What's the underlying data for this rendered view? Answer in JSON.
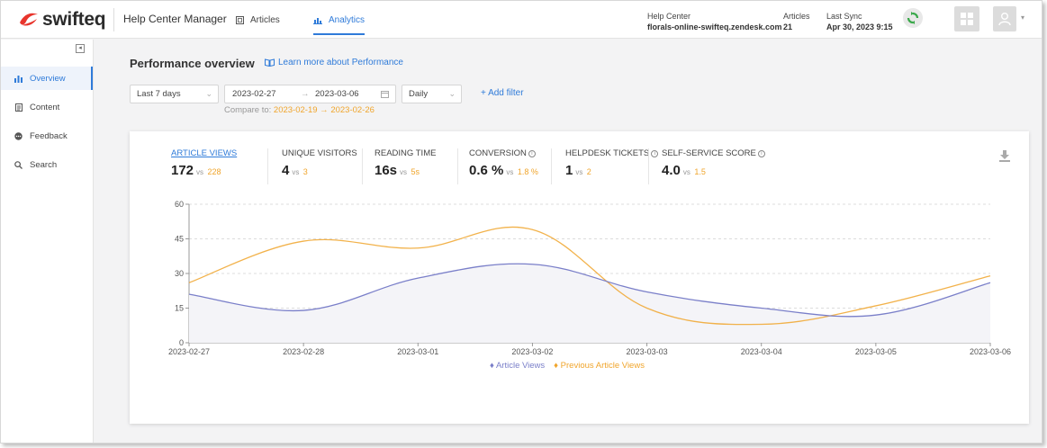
{
  "header": {
    "logo_text": "swifteq",
    "app_title": "Help Center Manager",
    "tabs": [
      {
        "label": "Articles",
        "icon": "article-icon"
      },
      {
        "label": "Analytics",
        "icon": "bar-chart-icon"
      }
    ],
    "help_center_label": "Help Center",
    "help_center_value": "florals-online-swifteq.zendesk.com",
    "articles_label": "Articles",
    "articles_value": "21",
    "last_sync_label": "Last Sync",
    "last_sync_value": "Apr 30, 2023 9:15"
  },
  "sidebar": {
    "items": [
      {
        "label": "Overview",
        "icon": "bar-chart-icon"
      },
      {
        "label": "Content",
        "icon": "document-icon"
      },
      {
        "label": "Feedback",
        "icon": "chat-icon"
      },
      {
        "label": "Search",
        "icon": "search-icon"
      }
    ]
  },
  "main": {
    "title": "Performance overview",
    "learn_link": "Learn more about Performance",
    "period": "Last 7 days",
    "date_from": "2023-02-27",
    "date_arrow": "→",
    "date_to": "2023-03-06",
    "granularity": "Daily",
    "add_filter": "+ Add filter",
    "compare_prefix": "Compare to:",
    "compare_from": "2023-02-19",
    "compare_to": "2023-02-26"
  },
  "kpis": [
    {
      "label": "ARTICLE VIEWS",
      "value": "172",
      "vs": "vs",
      "prev": "228",
      "info": false
    },
    {
      "label": "UNIQUE VISITORS",
      "value": "4",
      "vs": "vs",
      "prev": "3",
      "info": false
    },
    {
      "label": "READING TIME",
      "value": "16s",
      "vs": "vs",
      "prev": "5s",
      "info": false
    },
    {
      "label": "CONVERSION",
      "value": "0.6 %",
      "vs": "vs",
      "prev": "1.8 %",
      "info": true
    },
    {
      "label": "HELPDESK TICKETS",
      "value": "1",
      "vs": "vs",
      "prev": "2",
      "info": true
    },
    {
      "label": "SELF-SERVICE SCORE",
      "value": "4.0",
      "vs": "vs",
      "prev": "1.5",
      "info": true
    }
  ],
  "colors": {
    "accent": "#2f7bd9",
    "current_series": "#7a7fc9",
    "previous_series": "#f0a52c"
  },
  "chart_data": {
    "type": "line",
    "x": [
      "2023-02-27",
      "2023-02-28",
      "2023-03-01",
      "2023-03-02",
      "2023-03-03",
      "2023-03-04",
      "2023-03-05",
      "2023-03-06"
    ],
    "ylim": [
      0,
      60
    ],
    "yticks": [
      0,
      15,
      30,
      45,
      60
    ],
    "grid": true,
    "legend_position": "bottom",
    "series": [
      {
        "name": "Article Views",
        "values": [
          21,
          14,
          28,
          34,
          22,
          15,
          12,
          26
        ]
      },
      {
        "name": "Previous Article Views",
        "values": [
          26,
          44,
          41,
          49,
          15,
          8,
          16,
          29
        ]
      }
    ]
  }
}
